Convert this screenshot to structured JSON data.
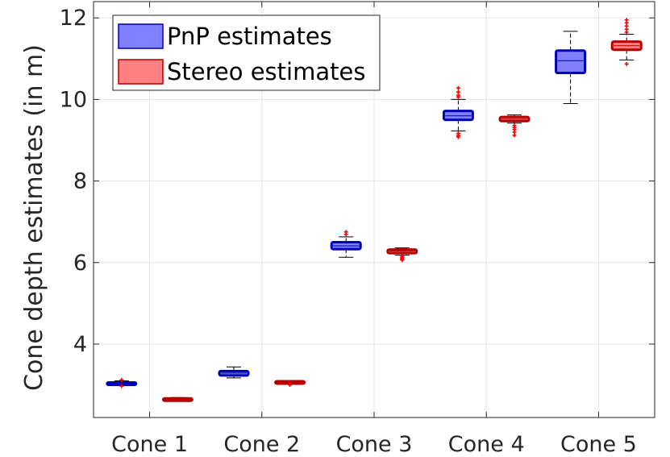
{
  "chart_data": {
    "type": "box",
    "title": "",
    "xlabel": "",
    "ylabel": "Cone depth estimates (in m)",
    "ylim": [
      2.2,
      12.4
    ],
    "yticks": [
      4,
      6,
      8,
      10,
      12
    ],
    "grid": true,
    "legend_position": "top-left",
    "categories": [
      "Cone 1",
      "Cone 2",
      "Cone 3",
      "Cone 4",
      "Cone 5"
    ],
    "series": [
      {
        "name": "PnP estimates",
        "fill": "#8080ff",
        "edge": "#0000b4",
        "boxes": [
          {
            "whisker_low": 2.98,
            "q1": 3.0,
            "median": 3.04,
            "q3": 3.06,
            "whisker_high": 3.1,
            "outliers": [
              3.12,
              2.97
            ]
          },
          {
            "whisker_low": 3.17,
            "q1": 3.23,
            "median": 3.29,
            "q3": 3.34,
            "whisker_high": 3.44,
            "outliers": []
          },
          {
            "whisker_low": 6.13,
            "q1": 6.33,
            "median": 6.41,
            "q3": 6.5,
            "whisker_high": 6.63,
            "outliers": [
              6.69,
              6.75
            ]
          },
          {
            "whisker_low": 9.23,
            "q1": 9.5,
            "median": 9.6,
            "q3": 9.72,
            "whisker_high": 10.0,
            "outliers": [
              9.08,
              9.12,
              9.17,
              10.06,
              10.1,
              10.18,
              10.28
            ]
          },
          {
            "whisker_low": 9.9,
            "q1": 10.65,
            "median": 10.95,
            "q3": 11.2,
            "whisker_high": 11.67,
            "outliers": []
          }
        ]
      },
      {
        "name": "Stereo estimates",
        "fill": "#ff8080",
        "edge": "#b40000",
        "boxes": [
          {
            "whisker_low": 2.62,
            "q1": 2.63,
            "median": 2.65,
            "q3": 2.67,
            "whisker_high": 2.69,
            "outliers": []
          },
          {
            "whisker_low": 3.05,
            "q1": 3.06,
            "median": 3.07,
            "q3": 3.09,
            "whisker_high": 3.1,
            "outliers": [
              3.0,
              3.02
            ]
          },
          {
            "whisker_low": 6.18,
            "q1": 6.23,
            "median": 6.28,
            "q3": 6.32,
            "whisker_high": 6.36,
            "outliers": [
              6.06,
              6.09,
              6.12,
              6.15
            ]
          },
          {
            "whisker_low": 9.42,
            "q1": 9.47,
            "median": 9.52,
            "q3": 9.57,
            "whisker_high": 9.62,
            "outliers": [
              9.12,
              9.2,
              9.26,
              9.31,
              9.36
            ]
          },
          {
            "whisker_low": 10.97,
            "q1": 11.22,
            "median": 11.32,
            "q3": 11.42,
            "whisker_high": 11.6,
            "outliers": [
              10.87,
              11.65,
              11.72,
              11.8,
              11.88,
              11.95
            ]
          }
        ]
      }
    ]
  }
}
